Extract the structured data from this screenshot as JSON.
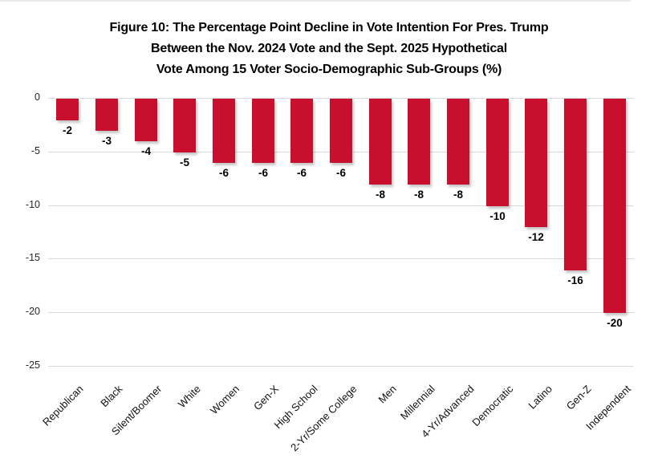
{
  "title": {
    "line1": "Figure 10: The Percentage Point Decline in Vote Intention For Pres. Trump",
    "line2": "Between the Nov. 2024 Vote and the Sept. 2025 Hypothetical",
    "line3": "Vote Among 15 Voter Socio-Demographic Sub-Groups (%)"
  },
  "chart_data": {
    "type": "bar",
    "orientation": "vertical",
    "title": "Figure 10: The Percentage Point Decline in Vote Intention For Pres. Trump Between the Nov. 2024 Vote and the Sept. 2025 Hypothetical Vote Among 15 Voter Socio-Demographic Sub-Groups (%)",
    "categories": [
      "Republican",
      "Black",
      "Silent/Boomer",
      "White",
      "Women",
      "Gen-X",
      "High School",
      "2-Yr/Some College",
      "Men",
      "Millennial",
      "4-Yr/Advanced",
      "Democratic",
      "Latino",
      "Gen-Z",
      "Independent"
    ],
    "values": [
      -2,
      -3,
      -4,
      -5,
      -6,
      -6,
      -6,
      -6,
      -8,
      -8,
      -8,
      -10,
      -12,
      -16,
      -20
    ],
    "data_labels": [
      "-2",
      "-3",
      "-4",
      "-5",
      "-6",
      "-6",
      "-6",
      "-6",
      "-8",
      "-8",
      "-8",
      "-10",
      "-12",
      "-16",
      "-20"
    ],
    "xlabel": "",
    "ylabel": "",
    "ylim": [
      -25,
      0
    ],
    "yticks": [
      0,
      -5,
      -10,
      -15,
      -20,
      -25
    ],
    "ytick_labels": [
      "0",
      "-5",
      "-10",
      "-15",
      "-20",
      "-25"
    ],
    "grid": true,
    "legend": "none",
    "bar_color": "#c8102e",
    "grid_color": "#d9d9d9",
    "value_label_color": "#000000",
    "tick_label_color": "#262626"
  }
}
